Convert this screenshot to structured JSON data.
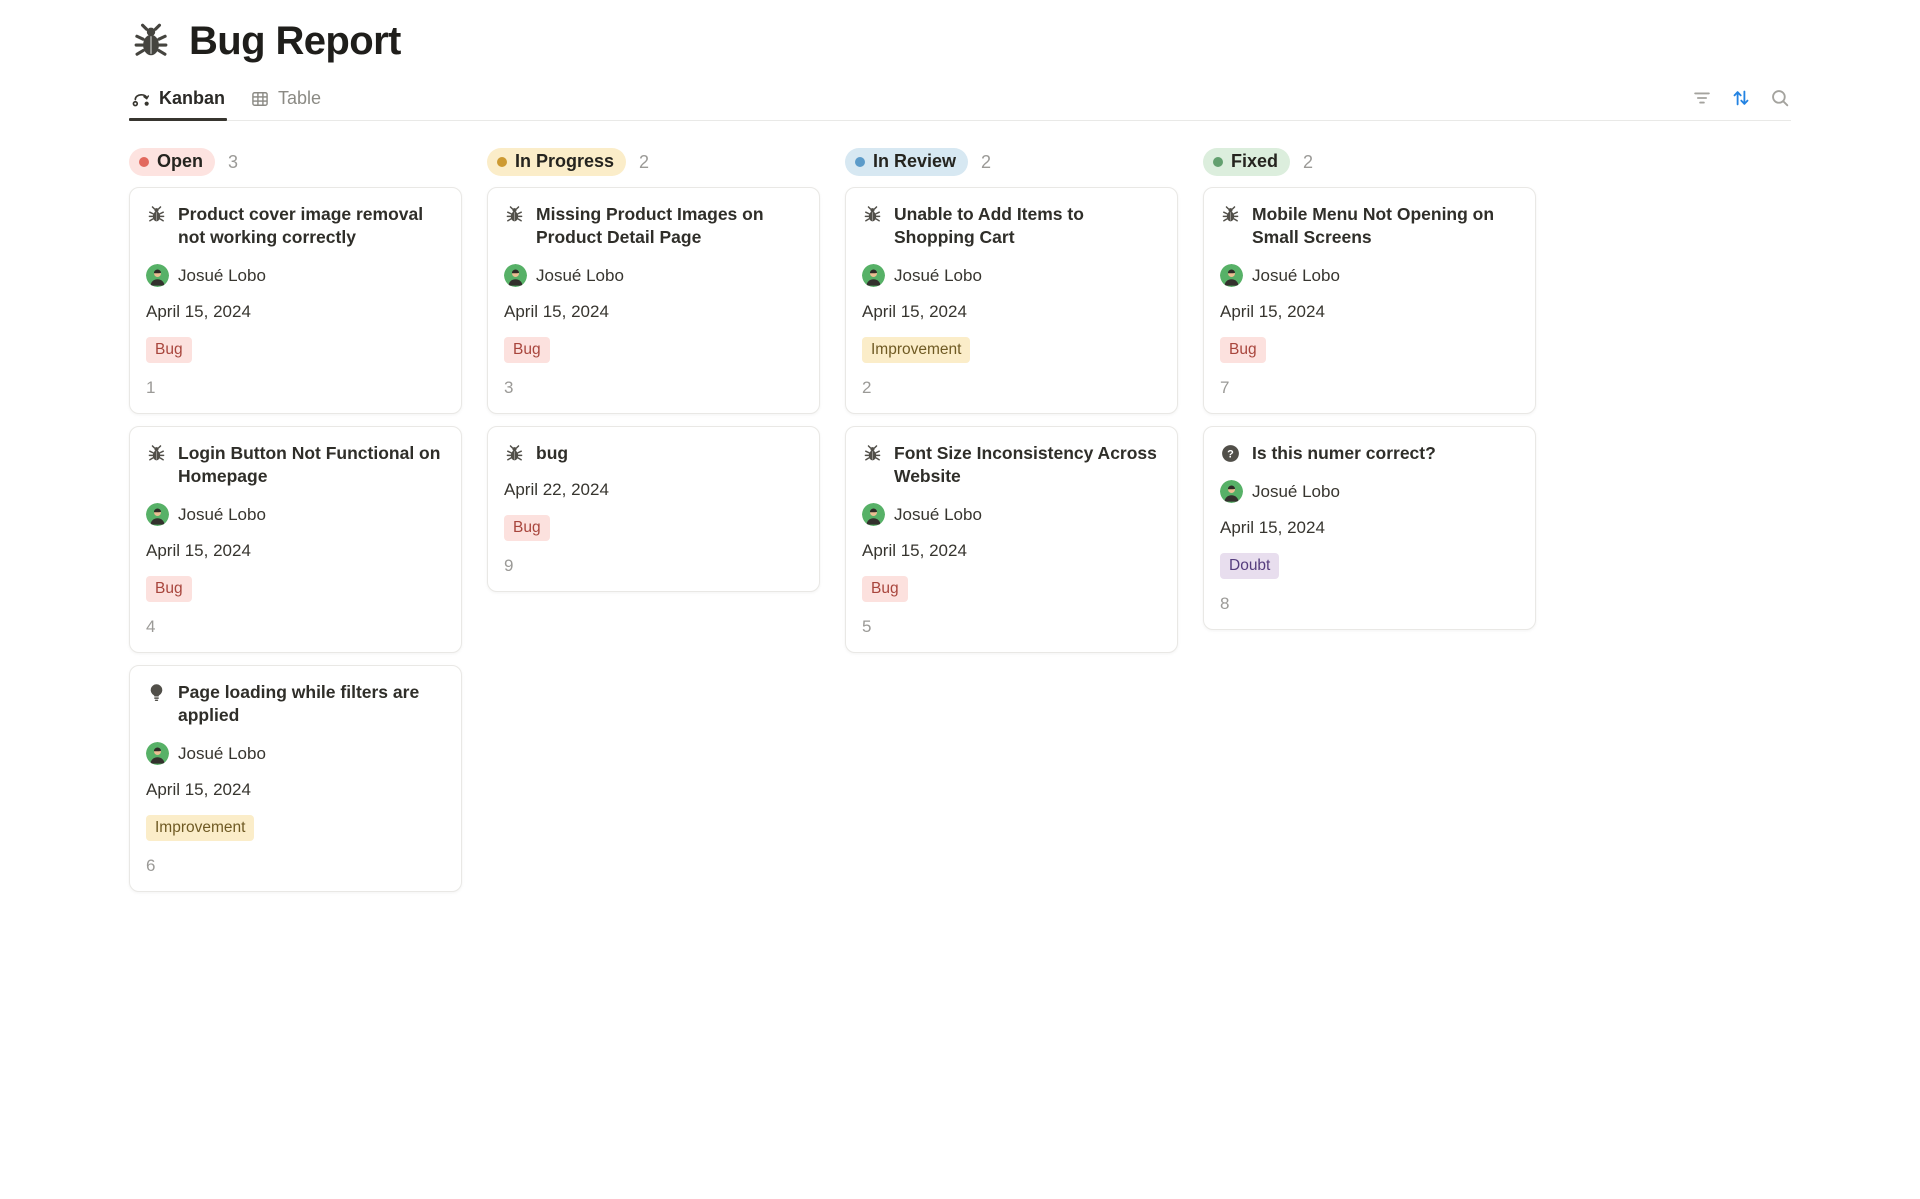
{
  "page": {
    "title": "Bug Report",
    "icon": "bug"
  },
  "toolbar": {
    "tabs": [
      {
        "label": "Kanban",
        "icon": "kanban",
        "active": true
      },
      {
        "label": "Table",
        "icon": "table",
        "active": false
      }
    ],
    "actions": [
      {
        "name": "filter",
        "color": "#A4A39E"
      },
      {
        "name": "sort",
        "color": "#2383E2"
      },
      {
        "name": "search",
        "color": "#A4A39E"
      }
    ]
  },
  "board": {
    "columns": [
      {
        "name": "Open",
        "count": "3",
        "pill_bg": "#FDE3E0",
        "dot_color": "#E2695E",
        "cards": [
          {
            "icon": "bug",
            "title": "Product cover image removal not working correctly",
            "assignee": "Josué Lobo",
            "date": "April 15, 2024",
            "tag": {
              "label": "Bug",
              "bg": "#FCE1DE",
              "color": "#A8453C"
            },
            "number": "1"
          },
          {
            "icon": "bug",
            "title": "Login Button Not Functional on Homepage",
            "assignee": "Josué Lobo",
            "date": "April 15, 2024",
            "tag": {
              "label": "Bug",
              "bg": "#FCE1DE",
              "color": "#A8453C"
            },
            "number": "4"
          },
          {
            "icon": "bulb",
            "title": "Page loading while filters are applied",
            "assignee": "Josué Lobo",
            "date": "April 15, 2024",
            "tag": {
              "label": "Improvement",
              "bg": "#FBEDC9",
              "color": "#6F5A23"
            },
            "number": "6"
          }
        ]
      },
      {
        "name": "In Progress",
        "count": "2",
        "pill_bg": "#FBEDC9",
        "dot_color": "#CD9A32",
        "cards": [
          {
            "icon": "bug",
            "title": "Missing Product Images on Product Detail Page",
            "assignee": "Josué Lobo",
            "date": "April 15, 2024",
            "tag": {
              "label": "Bug",
              "bg": "#FCE1DE",
              "color": "#A8453C"
            },
            "number": "3"
          },
          {
            "icon": "bug",
            "title": "bug",
            "date": "April 22, 2024",
            "tag": {
              "label": "Bug",
              "bg": "#FCE1DE",
              "color": "#A8453C"
            },
            "number": "9"
          }
        ]
      },
      {
        "name": "In Review",
        "count": "2",
        "pill_bg": "#D7E8F2",
        "dot_color": "#5C9BC9",
        "cards": [
          {
            "icon": "bug",
            "title": "Unable to Add Items to Shopping Cart",
            "assignee": "Josué Lobo",
            "date": "April 15, 2024",
            "tag": {
              "label": "Improvement",
              "bg": "#FBEDC9",
              "color": "#6F5A23"
            },
            "number": "2"
          },
          {
            "icon": "bug",
            "title": "Font Size Inconsistency Across Website",
            "assignee": "Josué Lobo",
            "date": "April 15, 2024",
            "tag": {
              "label": "Bug",
              "bg": "#FCE1DE",
              "color": "#A8453C"
            },
            "number": "5"
          }
        ]
      },
      {
        "name": "Fixed",
        "count": "2",
        "pill_bg": "#DCEEDD",
        "dot_color": "#63A06F",
        "cards": [
          {
            "icon": "bug",
            "title": "Mobile Menu Not Opening on Small Screens",
            "assignee": "Josué Lobo",
            "date": "April 15, 2024",
            "tag": {
              "label": "Bug",
              "bg": "#FCE1DE",
              "color": "#A8453C"
            },
            "number": "7"
          },
          {
            "icon": "question",
            "title": "Is this numer correct?",
            "assignee": "Josué Lobo",
            "date": "April 15, 2024",
            "tag": {
              "label": "Doubt",
              "bg": "#E8DEEE",
              "color": "#553D7D"
            },
            "number": "8"
          }
        ]
      }
    ]
  }
}
